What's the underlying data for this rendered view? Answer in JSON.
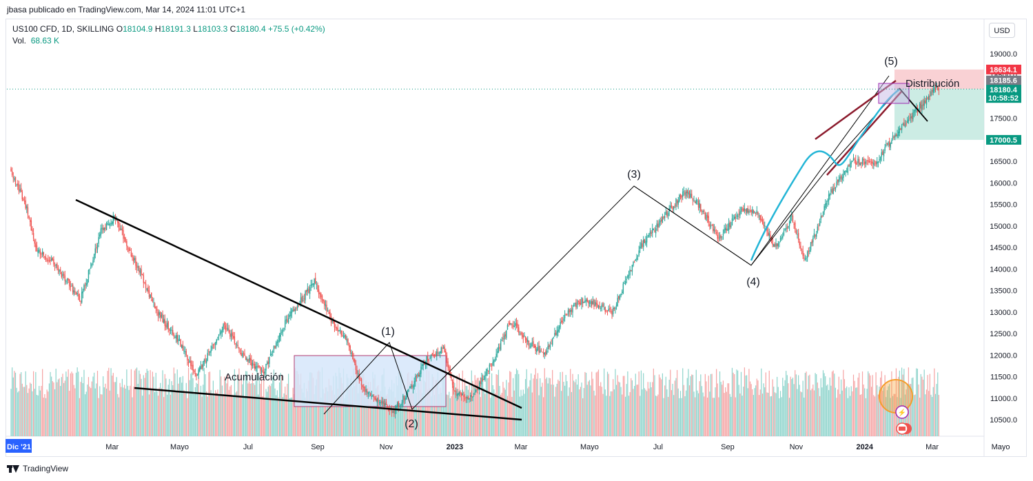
{
  "header": {
    "attribution": "jbasa publicado en TradingView.com, Mar 14, 2024 11:01 UTC+1"
  },
  "legend": {
    "symbol": "US100 CFD, 1D, SKILLING",
    "o_label": "O",
    "o_value": "18104.9",
    "h_label": "H",
    "h_value": "18191.3",
    "l_label": "L",
    "l_value": "18103.3",
    "c_label": "C",
    "c_value": "18180.4",
    "change": "+75.5 (+0.42%)",
    "vol_label": "Vol.",
    "vol_value": "68.63 K"
  },
  "currency_button": "USD",
  "footer": {
    "brand": "TradingView"
  },
  "price_badges": {
    "stop": "18634.1",
    "last": "18185.6",
    "current": "18180.4",
    "countdown": "10:58:52",
    "target": "17000.5"
  },
  "colors": {
    "up": "#26a69a",
    "down": "#ef5350",
    "vol_up": "#8cd3cb",
    "vol_down": "#f5a3a3",
    "stop_badge": "#f23645",
    "target_badge": "#089981",
    "last_badge": "#787b86",
    "accum_fill": "#d6e6fa",
    "accum_border": "#b23a6f",
    "ma_line": "#22b5d6",
    "channel": "#8b1a2c",
    "tv_orange": "#f59d2a"
  },
  "annotations": {
    "wave1": "(1)",
    "wave2": "(2)",
    "wave3": "(3)",
    "wave4": "(4)",
    "wave5": "(5)",
    "accumulation": "Acumulación",
    "distribution": "Distribución"
  },
  "chart_data": {
    "type": "candlestick",
    "yticks": [
      10500,
      11000,
      11500,
      12000,
      12500,
      13000,
      13500,
      14000,
      14500,
      15000,
      15500,
      16000,
      16500,
      17000,
      17500,
      18000,
      18500,
      19000
    ],
    "ylim": [
      10000,
      19500
    ],
    "xtick_labels": [
      "Dic '21",
      "Mar",
      "Mayo",
      "Jul",
      "Sep",
      "Nov",
      "2023",
      "Mar",
      "Mayo",
      "Jul",
      "Sep",
      "Nov",
      "2024",
      "Mar",
      "Mayo"
    ],
    "xtick_days": [
      0,
      90,
      150,
      211,
      273,
      334,
      395,
      454,
      515,
      576,
      638,
      699,
      760,
      820,
      881
    ],
    "price_path_anchors": [
      [
        0,
        16300
      ],
      [
        14,
        15400
      ],
      [
        22,
        14500
      ],
      [
        35,
        14200
      ],
      [
        50,
        13700
      ],
      [
        62,
        13300
      ],
      [
        80,
        14900
      ],
      [
        92,
        15200
      ],
      [
        110,
        14200
      ],
      [
        130,
        13000
      ],
      [
        150,
        12300
      ],
      [
        165,
        11500
      ],
      [
        190,
        12700
      ],
      [
        205,
        12000
      ],
      [
        225,
        11600
      ],
      [
        245,
        12800
      ],
      [
        270,
        13700
      ],
      [
        285,
        12800
      ],
      [
        300,
        12300
      ],
      [
        312,
        11300
      ],
      [
        322,
        11000
      ],
      [
        340,
        10700
      ],
      [
        355,
        11200
      ],
      [
        370,
        11900
      ],
      [
        385,
        12200
      ],
      [
        395,
        11100
      ],
      [
        410,
        11000
      ],
      [
        430,
        11900
      ],
      [
        445,
        12800
      ],
      [
        460,
        12300
      ],
      [
        475,
        12000
      ],
      [
        495,
        13000
      ],
      [
        510,
        13300
      ],
      [
        535,
        13000
      ],
      [
        560,
        14500
      ],
      [
        590,
        15500
      ],
      [
        600,
        15800
      ],
      [
        612,
        15500
      ],
      [
        630,
        14700
      ],
      [
        650,
        15400
      ],
      [
        665,
        15300
      ],
      [
        680,
        14500
      ],
      [
        695,
        15200
      ],
      [
        707,
        14200
      ],
      [
        730,
        15800
      ],
      [
        750,
        16500
      ],
      [
        770,
        16500
      ],
      [
        790,
        17200
      ],
      [
        810,
        17800
      ],
      [
        823,
        18200
      ],
      [
        826,
        18180
      ]
    ],
    "stop_price": 18634.1,
    "current_price": 18180.4,
    "target_price": 17000.5
  }
}
